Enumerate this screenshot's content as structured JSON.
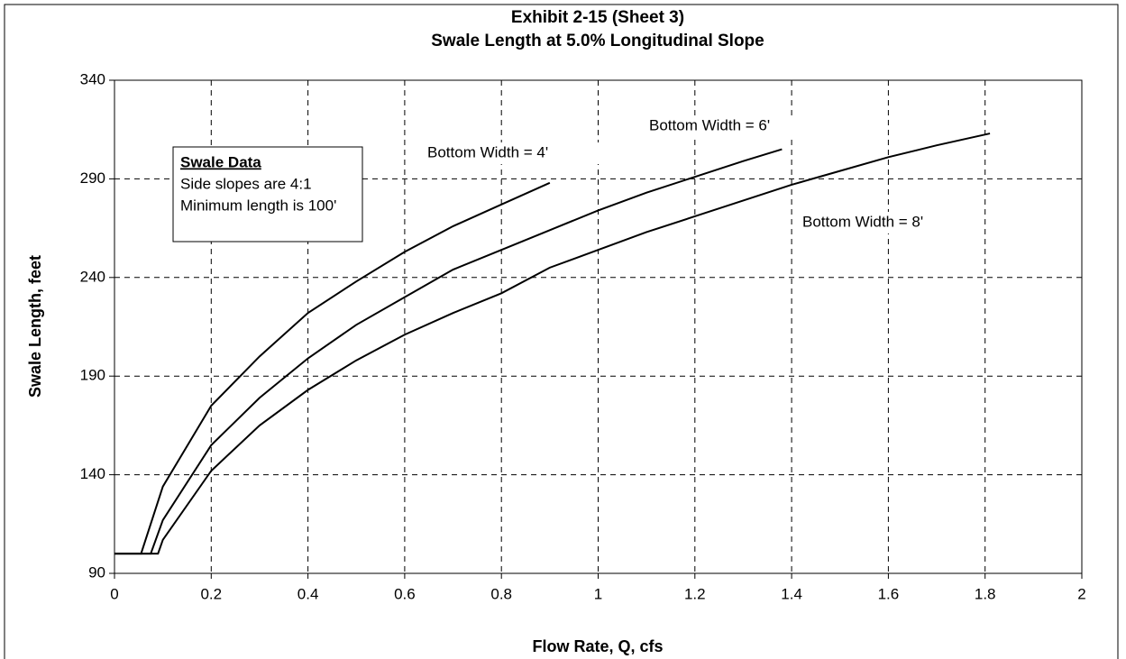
{
  "chart_data": {
    "type": "line",
    "title": [
      "Exhibit 2-15 (Sheet 3)",
      "Swale Length at 5.0% Longitudinal Slope"
    ],
    "xlabel": "Flow Rate, Q, cfs",
    "ylabel": "Swale Length, feet",
    "xlim": [
      0,
      2
    ],
    "xticks": [
      0,
      0.2,
      0.4,
      0.6,
      0.8,
      1,
      1.2,
      1.4,
      1.6,
      1.8,
      2
    ],
    "ylim": [
      90,
      340
    ],
    "yticks": [
      90,
      140,
      190,
      240,
      290,
      340
    ],
    "grid": true,
    "annotation": {
      "heading": "Swale Data",
      "lines": [
        "Side slopes are 4:1",
        "Minimum length is 100'"
      ]
    },
    "series": [
      {
        "name": "Bottom Width = 4'",
        "color": "#000000",
        "x": [
          0,
          0.055,
          0.1,
          0.2,
          0.3,
          0.4,
          0.5,
          0.6,
          0.7,
          0.8,
          0.9
        ],
        "values": [
          100,
          100,
          134,
          175,
          200,
          222,
          238,
          253,
          266,
          277,
          288
        ]
      },
      {
        "name": "Bottom Width = 6'",
        "color": "#000000",
        "x": [
          0,
          0.075,
          0.1,
          0.2,
          0.3,
          0.4,
          0.5,
          0.6,
          0.7,
          0.8,
          0.9,
          1.0,
          1.1,
          1.2,
          1.3,
          1.38
        ],
        "values": [
          100,
          100,
          117,
          155,
          179,
          199,
          216,
          230,
          244,
          254,
          264,
          274,
          283,
          291,
          299,
          305
        ]
      },
      {
        "name": "Bottom Width = 8'",
        "color": "#000000",
        "x": [
          0,
          0.09,
          0.1,
          0.2,
          0.3,
          0.4,
          0.5,
          0.6,
          0.7,
          0.8,
          0.9,
          1.0,
          1.1,
          1.2,
          1.3,
          1.4,
          1.5,
          1.6,
          1.7,
          1.81
        ],
        "values": [
          100,
          100,
          107,
          142,
          165,
          183,
          198,
          211,
          222,
          232,
          245,
          254,
          263,
          271,
          279,
          287,
          294,
          301,
          307,
          313
        ]
      }
    ]
  }
}
